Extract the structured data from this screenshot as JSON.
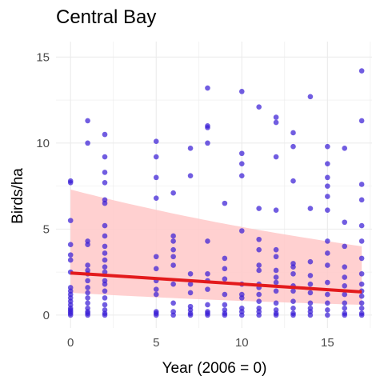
{
  "chart_data": {
    "type": "scatter",
    "title": "Central Bay",
    "xlabel": "Year (2006 = 0)",
    "ylabel": "Birds/ha",
    "xlim": [
      -0.85,
      17.6
    ],
    "ylim": [
      -0.75,
      15.9
    ],
    "xticks": [
      0,
      5,
      10,
      15
    ],
    "yticks": [
      0,
      5,
      10,
      15
    ],
    "grid": true,
    "colors": {
      "points": "#3a1fd6",
      "fit": "#e31a1c",
      "ribbon": "#ffc8c8",
      "grid": "#ebebeb"
    },
    "fit_line": {
      "x": [
        0,
        17
      ],
      "y": [
        2.45,
        1.35
      ]
    },
    "confidence_band": {
      "x": [
        0,
        17
      ],
      "upper": [
        7.3,
        4.0
      ],
      "lower": [
        1.3,
        0.6
      ]
    },
    "points": [
      [
        0,
        7.8
      ],
      [
        0,
        7.7
      ],
      [
        0,
        5.5
      ],
      [
        0,
        4.1
      ],
      [
        0,
        3.5
      ],
      [
        0,
        3.2
      ],
      [
        0,
        2.5
      ],
      [
        0,
        1.6
      ],
      [
        0,
        1.4
      ],
      [
        0,
        1.2
      ],
      [
        0,
        1.0
      ],
      [
        0,
        0.8
      ],
      [
        0,
        0.6
      ],
      [
        0,
        0.4
      ],
      [
        0,
        0.3
      ],
      [
        0,
        0.2
      ],
      [
        0,
        0.1
      ],
      [
        0,
        0.0
      ],
      [
        1,
        11.3
      ],
      [
        1,
        10.0
      ],
      [
        1,
        4.3
      ],
      [
        1,
        4.1
      ],
      [
        1,
        2.9
      ],
      [
        1,
        2.6
      ],
      [
        1,
        2.4
      ],
      [
        1,
        2.0
      ],
      [
        1,
        1.6
      ],
      [
        1,
        1.3
      ],
      [
        1,
        1.0
      ],
      [
        1,
        0.7
      ],
      [
        1,
        0.4
      ],
      [
        1,
        0.2
      ],
      [
        1,
        0.1
      ],
      [
        1,
        0.0
      ],
      [
        2,
        10.5
      ],
      [
        2,
        9.2
      ],
      [
        2,
        8.3
      ],
      [
        2,
        7.7
      ],
      [
        2,
        6.7
      ],
      [
        2,
        6.5
      ],
      [
        2,
        5.2
      ],
      [
        2,
        4.6
      ],
      [
        2,
        4.0
      ],
      [
        2,
        3.6
      ],
      [
        2,
        3.2
      ],
      [
        2,
        2.8
      ],
      [
        2,
        2.5
      ],
      [
        2,
        2.0
      ],
      [
        2,
        1.8
      ],
      [
        2,
        1.4
      ],
      [
        2,
        1.0
      ],
      [
        2,
        0.6
      ],
      [
        2,
        0.3
      ],
      [
        2,
        0.1
      ],
      [
        2,
        0.0
      ],
      [
        5,
        10.1
      ],
      [
        5,
        9.2
      ],
      [
        5,
        8.0
      ],
      [
        5,
        6.8
      ],
      [
        5,
        3.4
      ],
      [
        5,
        2.7
      ],
      [
        5,
        2.0
      ],
      [
        5,
        1.5
      ],
      [
        5,
        1.2
      ],
      [
        5,
        0.2
      ],
      [
        5,
        0.1
      ],
      [
        5,
        0.0
      ],
      [
        6,
        7.1
      ],
      [
        6,
        4.6
      ],
      [
        6,
        4.3
      ],
      [
        6,
        3.8
      ],
      [
        6,
        3.4
      ],
      [
        6,
        2.9
      ],
      [
        6,
        1.8
      ],
      [
        6,
        0.7
      ],
      [
        6,
        0.2
      ],
      [
        6,
        0.0
      ],
      [
        7,
        9.7
      ],
      [
        7,
        8.1
      ],
      [
        7,
        2.4
      ],
      [
        7,
        1.8
      ],
      [
        7,
        1.3
      ],
      [
        7,
        0.5
      ],
      [
        7,
        0.3
      ],
      [
        7,
        0.1
      ],
      [
        7,
        0.0
      ],
      [
        8,
        13.2
      ],
      [
        8,
        11.0
      ],
      [
        8,
        10.9
      ],
      [
        8,
        10.0
      ],
      [
        8,
        4.3
      ],
      [
        8,
        2.4
      ],
      [
        8,
        2.0
      ],
      [
        8,
        1.5
      ],
      [
        8,
        0.6
      ],
      [
        8,
        0.2
      ],
      [
        8,
        0.1
      ],
      [
        8,
        0.0
      ],
      [
        9,
        6.5
      ],
      [
        9,
        3.3
      ],
      [
        9,
        2.7
      ],
      [
        9,
        2.1
      ],
      [
        9,
        1.2
      ],
      [
        9,
        0.6
      ],
      [
        9,
        0.3
      ],
      [
        9,
        0.1
      ],
      [
        9,
        0.0
      ],
      [
        10,
        13.0
      ],
      [
        10,
        9.4
      ],
      [
        10,
        8.8
      ],
      [
        10,
        8.1
      ],
      [
        10,
        4.9
      ],
      [
        10,
        1.8
      ],
      [
        10,
        1.2
      ],
      [
        10,
        1.0
      ],
      [
        10,
        0.4
      ],
      [
        10,
        0.2
      ],
      [
        10,
        0.0
      ],
      [
        11,
        12.1
      ],
      [
        11,
        6.2
      ],
      [
        11,
        4.4
      ],
      [
        11,
        3.8
      ],
      [
        11,
        2.9
      ],
      [
        11,
        2.6
      ],
      [
        11,
        1.8
      ],
      [
        11,
        1.6
      ],
      [
        11,
        1.2
      ],
      [
        11,
        0.8
      ],
      [
        11,
        0.4
      ],
      [
        11,
        0.2
      ],
      [
        11,
        0.0
      ],
      [
        12,
        11.5
      ],
      [
        12,
        11.2
      ],
      [
        12,
        9.2
      ],
      [
        12,
        6.1
      ],
      [
        12,
        3.8
      ],
      [
        12,
        3.4
      ],
      [
        12,
        2.6
      ],
      [
        12,
        2.2
      ],
      [
        12,
        1.9
      ],
      [
        12,
        1.4
      ],
      [
        12,
        0.7
      ],
      [
        12,
        0.3
      ],
      [
        12,
        0.1
      ],
      [
        12,
        0.0
      ],
      [
        13,
        10.6
      ],
      [
        13,
        9.8
      ],
      [
        13,
        7.8
      ],
      [
        13,
        3.0
      ],
      [
        13,
        2.8
      ],
      [
        13,
        2.4
      ],
      [
        13,
        1.7
      ],
      [
        13,
        1.4
      ],
      [
        13,
        0.8
      ],
      [
        13,
        0.4
      ],
      [
        13,
        0.1
      ],
      [
        13,
        0.0
      ],
      [
        14,
        12.7
      ],
      [
        14,
        6.2
      ],
      [
        14,
        3.1
      ],
      [
        14,
        2.3
      ],
      [
        14,
        1.8
      ],
      [
        14,
        1.3
      ],
      [
        14,
        0.7
      ],
      [
        14,
        0.4
      ],
      [
        14,
        0.2
      ],
      [
        14,
        0.0
      ],
      [
        15,
        9.8
      ],
      [
        15,
        8.8
      ],
      [
        15,
        8.0
      ],
      [
        15,
        7.5
      ],
      [
        15,
        6.9
      ],
      [
        15,
        6.1
      ],
      [
        15,
        4.3
      ],
      [
        15,
        3.6
      ],
      [
        15,
        2.9
      ],
      [
        15,
        1.9
      ],
      [
        15,
        1.2
      ],
      [
        15,
        0.7
      ],
      [
        15,
        0.3
      ],
      [
        15,
        0.0
      ],
      [
        16,
        9.7
      ],
      [
        16,
        5.4
      ],
      [
        16,
        4.0
      ],
      [
        16,
        2.8
      ],
      [
        16,
        2.2
      ],
      [
        16,
        1.7
      ],
      [
        16,
        1.2
      ],
      [
        16,
        0.7
      ],
      [
        16,
        0.4
      ],
      [
        16,
        0.1
      ],
      [
        16,
        0.0
      ],
      [
        17,
        14.2
      ],
      [
        17,
        11.3
      ],
      [
        17,
        7.6
      ],
      [
        17,
        6.7
      ],
      [
        17,
        5.2
      ],
      [
        17,
        4.3
      ],
      [
        17,
        3.3
      ],
      [
        17,
        2.4
      ],
      [
        17,
        1.8
      ],
      [
        17,
        1.4
      ],
      [
        17,
        1.1
      ],
      [
        17,
        0.7
      ],
      [
        17,
        0.4
      ],
      [
        17,
        0.1
      ],
      [
        17,
        0.0
      ]
    ]
  }
}
